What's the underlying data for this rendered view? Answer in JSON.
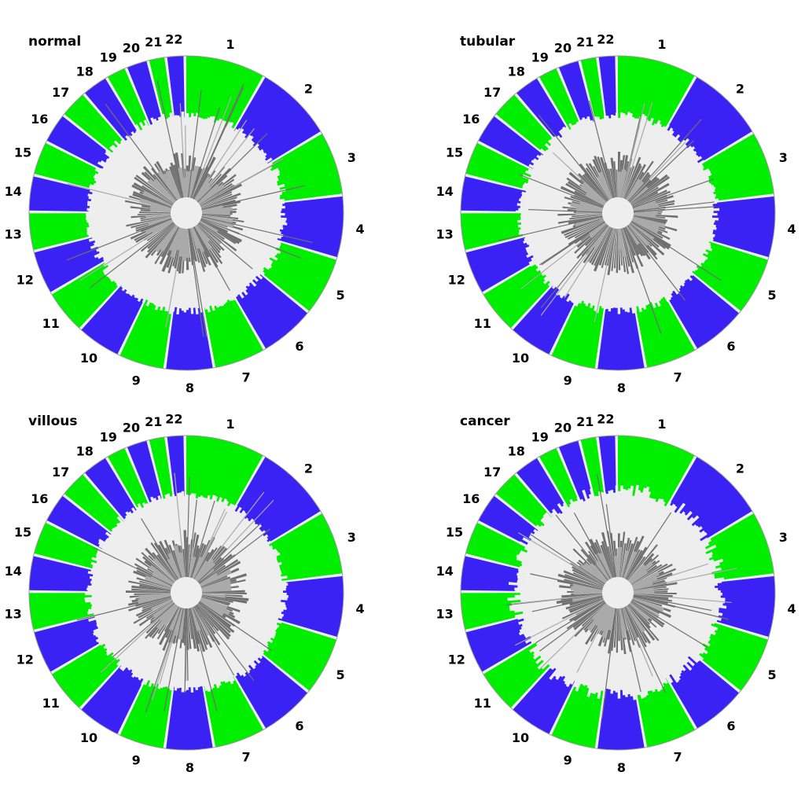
{
  "chart_data": [
    {
      "type": "circular-genome",
      "title": "normal",
      "chromosomes": [
        "1",
        "2",
        "3",
        "4",
        "5",
        "6",
        "7",
        "8",
        "9",
        "10",
        "11",
        "12",
        "13",
        "14",
        "15",
        "16",
        "17",
        "18",
        "19",
        "20",
        "21",
        "22"
      ],
      "layers": [
        "outer chromosome band",
        "light gray signal",
        "dark gray signal",
        "mid gray signal"
      ]
    },
    {
      "type": "circular-genome",
      "title": "tubular",
      "chromosomes": [
        "1",
        "2",
        "3",
        "4",
        "5",
        "6",
        "7",
        "8",
        "9",
        "10",
        "11",
        "12",
        "13",
        "14",
        "15",
        "16",
        "17",
        "18",
        "19",
        "20",
        "21",
        "22"
      ],
      "layers": [
        "outer chromosome band",
        "light gray signal",
        "dark gray signal",
        "mid gray signal"
      ]
    },
    {
      "type": "circular-genome",
      "title": "villous",
      "chromosomes": [
        "1",
        "2",
        "3",
        "4",
        "5",
        "6",
        "7",
        "8",
        "9",
        "10",
        "11",
        "12",
        "13",
        "14",
        "15",
        "16",
        "17",
        "18",
        "19",
        "20",
        "21",
        "22"
      ],
      "layers": [
        "outer chromosome band",
        "light gray signal",
        "dark gray signal",
        "mid gray signal"
      ]
    },
    {
      "type": "circular-genome",
      "title": "cancer",
      "chromosomes": [
        "1",
        "2",
        "3",
        "4",
        "5",
        "6",
        "7",
        "8",
        "9",
        "10",
        "11",
        "12",
        "13",
        "14",
        "15",
        "16",
        "17",
        "18",
        "19",
        "20",
        "21",
        "22"
      ],
      "layers": [
        "outer chromosome band",
        "light gray signal",
        "dark gray signal",
        "mid gray signal"
      ]
    }
  ],
  "colors": {
    "band_green": "#00ee00",
    "band_blue": "#3a22f5",
    "gap": "#eeeeee",
    "light_gray": "#eeeeee",
    "dark_gray": "#6f6f6f",
    "mid_gray": "#aaaaaa",
    "outline": "#999999"
  }
}
